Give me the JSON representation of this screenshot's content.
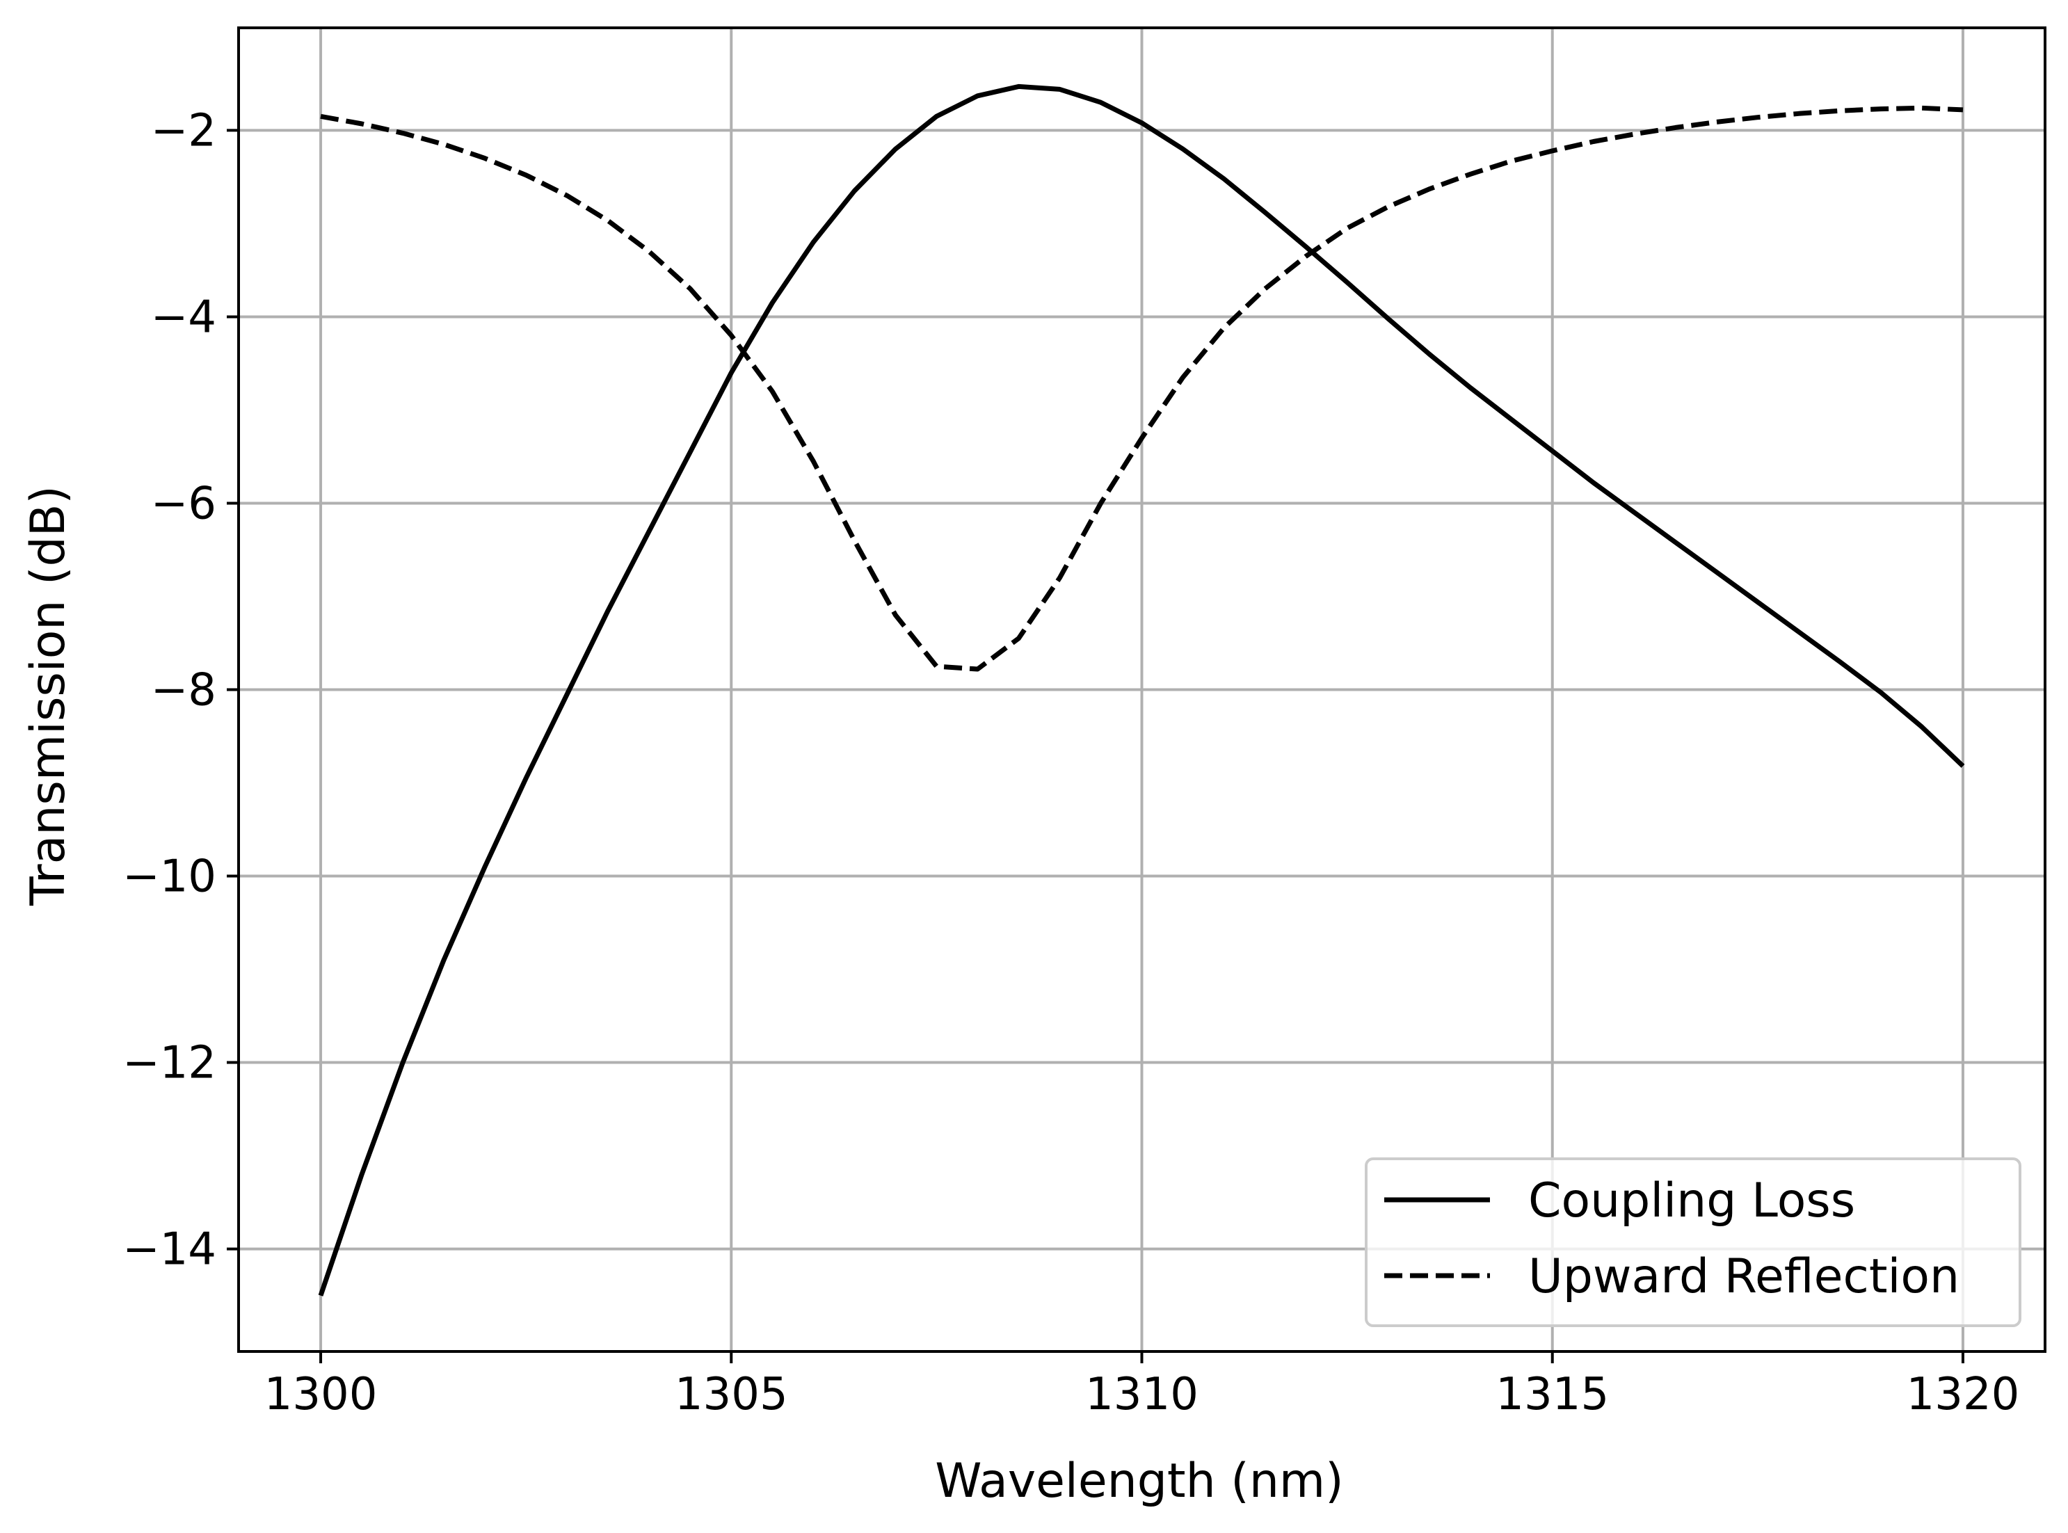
{
  "chart_data": {
    "type": "line",
    "xlabel": "Wavelength (nm)",
    "ylabel": "Transmission (dB)",
    "xlim": [
      1299,
      1321
    ],
    "ylim": [
      -15.1,
      -0.9
    ],
    "grid": true,
    "x_ticks": [
      1300,
      1305,
      1310,
      1315,
      1320
    ],
    "x_tick_labels": [
      "1300",
      "1305",
      "1310",
      "1315",
      "1320"
    ],
    "y_ticks": [
      -14,
      -12,
      -10,
      -8,
      -6,
      -4,
      -2
    ],
    "y_tick_labels": [
      "−14",
      "−12",
      "−10",
      "−8",
      "−6",
      "−4",
      "−2"
    ],
    "legend_position": "lower-right",
    "series": [
      {
        "name": "Coupling Loss",
        "style": "solid",
        "color": "#000000",
        "x": [
          1300,
          1300.5,
          1301,
          1301.5,
          1302,
          1302.5,
          1303,
          1303.5,
          1304,
          1304.5,
          1305,
          1305.5,
          1306,
          1306.5,
          1307,
          1307.5,
          1308,
          1308.5,
          1309,
          1309.5,
          1310,
          1310.5,
          1311,
          1311.5,
          1312,
          1312.5,
          1313,
          1313.5,
          1314,
          1314.5,
          1315,
          1315.5,
          1316,
          1316.5,
          1317,
          1317.5,
          1318,
          1318.5,
          1319,
          1319.5,
          1320
        ],
        "y": [
          -14.5,
          -13.2,
          -12.0,
          -10.9,
          -9.9,
          -8.95,
          -8.05,
          -7.15,
          -6.3,
          -5.45,
          -4.6,
          -3.85,
          -3.2,
          -2.65,
          -2.2,
          -1.85,
          -1.63,
          -1.53,
          -1.56,
          -1.7,
          -1.92,
          -2.2,
          -2.52,
          -2.88,
          -3.25,
          -3.63,
          -4.02,
          -4.4,
          -4.76,
          -5.1,
          -5.44,
          -5.78,
          -6.1,
          -6.42,
          -6.74,
          -7.06,
          -7.38,
          -7.7,
          -8.03,
          -8.4,
          -8.82
        ]
      },
      {
        "name": "Upward Reflection",
        "style": "dashed",
        "color": "#000000",
        "x": [
          1300,
          1300.5,
          1301,
          1301.5,
          1302,
          1302.5,
          1303,
          1303.5,
          1304,
          1304.5,
          1305,
          1305.5,
          1306,
          1306.5,
          1307,
          1307.5,
          1308,
          1308.5,
          1309,
          1309.5,
          1310,
          1310.5,
          1311,
          1311.5,
          1312,
          1312.5,
          1313,
          1313.5,
          1314,
          1314.5,
          1315,
          1315.5,
          1316,
          1316.5,
          1317,
          1317.5,
          1318,
          1318.5,
          1319,
          1319.5,
          1320
        ],
        "y": [
          -1.85,
          -1.93,
          -2.03,
          -2.15,
          -2.3,
          -2.48,
          -2.7,
          -2.97,
          -3.3,
          -3.7,
          -4.2,
          -4.8,
          -5.55,
          -6.4,
          -7.2,
          -7.75,
          -7.78,
          -7.45,
          -6.8,
          -6.0,
          -5.3,
          -4.65,
          -4.12,
          -3.7,
          -3.35,
          -3.05,
          -2.82,
          -2.63,
          -2.47,
          -2.33,
          -2.22,
          -2.12,
          -2.04,
          -1.97,
          -1.91,
          -1.86,
          -1.82,
          -1.79,
          -1.77,
          -1.76,
          -1.78
        ]
      }
    ]
  }
}
